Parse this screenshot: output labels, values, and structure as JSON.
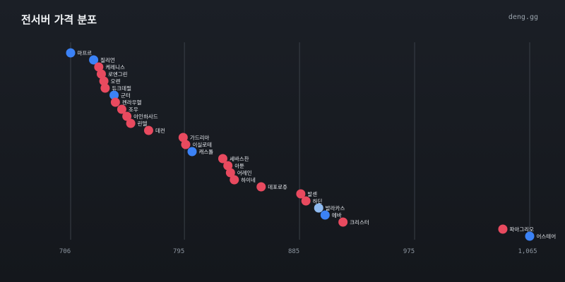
{
  "header": {
    "title": "전서버 가격 분포",
    "brand": "deng.gg"
  },
  "colors": {
    "red": "#e84a5f",
    "blue": "#3b82f6",
    "lightblue": "#8fbaf0",
    "background": "#16191e",
    "grid": "#3a4048"
  },
  "chart_data": {
    "type": "scatter",
    "title": "전서버 가격 분포",
    "xlim": [
      706,
      1065
    ],
    "xticks": [
      706,
      795,
      885,
      975,
      1065
    ],
    "xtick_labels": [
      "706",
      "795",
      "885",
      "975",
      "1,065"
    ],
    "grid": "vertical",
    "points": [
      {
        "label": "마프르",
        "x": 706,
        "color": "blue"
      },
      {
        "label": "질리언",
        "x": 724,
        "color": "blue"
      },
      {
        "label": "케레니스",
        "x": 728,
        "color": "red"
      },
      {
        "label": "로엔그린",
        "x": 730,
        "color": "red"
      },
      {
        "label": "오렌",
        "x": 732,
        "color": "red"
      },
      {
        "label": "듀크데필",
        "x": 733,
        "color": "red"
      },
      {
        "label": "군터",
        "x": 740,
        "color": "blue"
      },
      {
        "label": "켄라우헬",
        "x": 741,
        "color": "red"
      },
      {
        "label": "조우",
        "x": 746,
        "color": "red"
      },
      {
        "label": "아인하사드",
        "x": 750,
        "color": "red"
      },
      {
        "label": "린델",
        "x": 753,
        "color": "red"
      },
      {
        "label": "데컨",
        "x": 767,
        "color": "red"
      },
      {
        "label": "가드리아",
        "x": 794,
        "color": "red"
      },
      {
        "label": "이실로테",
        "x": 796,
        "color": "red"
      },
      {
        "label": "캐스톨",
        "x": 801,
        "color": "blue"
      },
      {
        "label": "세바스찬",
        "x": 825,
        "color": "red"
      },
      {
        "label": "아툰",
        "x": 829,
        "color": "red"
      },
      {
        "label": "어레인",
        "x": 831,
        "color": "red"
      },
      {
        "label": "하이네",
        "x": 834,
        "color": "red"
      },
      {
        "label": "데포로쥬",
        "x": 855,
        "color": "red"
      },
      {
        "label": "발센",
        "x": 886,
        "color": "red"
      },
      {
        "label": "하딘",
        "x": 890,
        "color": "red"
      },
      {
        "label": "발라카스",
        "x": 900,
        "color": "lightblue"
      },
      {
        "label": "에바",
        "x": 905,
        "color": "blue"
      },
      {
        "label": "크리스터",
        "x": 919,
        "color": "red"
      },
      {
        "label": "파아그리오",
        "x": 1044,
        "color": "red"
      },
      {
        "label": "어스테어",
        "x": 1065,
        "color": "blue"
      }
    ]
  }
}
